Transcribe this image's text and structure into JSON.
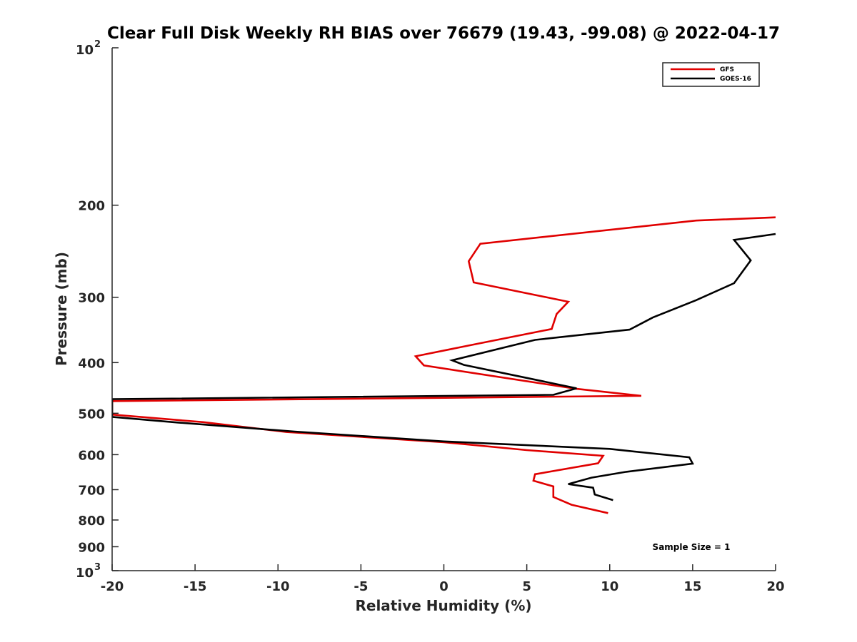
{
  "chart_data": {
    "type": "line",
    "title": "Clear Full Disk Weekly RH BIAS over 76679 (19.43, -99.08) @ 2022-04-17",
    "xlabel": "Relative Humidity (%)",
    "ylabel": "Pressure (mb)",
    "xlim": [
      -20,
      20
    ],
    "ylim": [
      100,
      1000
    ],
    "y_scale": "log",
    "y_reversed": true,
    "x_ticks": [
      "-20",
      "-15",
      "-10",
      "-5",
      "0",
      "5",
      "10",
      "15",
      "20"
    ],
    "y_ticks": [
      {
        "value": 100,
        "label": "10",
        "sup": "2"
      },
      {
        "value": 200,
        "label": "200",
        "sup": ""
      },
      {
        "value": 300,
        "label": "300",
        "sup": ""
      },
      {
        "value": 400,
        "label": "400",
        "sup": ""
      },
      {
        "value": 500,
        "label": "500",
        "sup": ""
      },
      {
        "value": 600,
        "label": "600",
        "sup": ""
      },
      {
        "value": 700,
        "label": "700",
        "sup": ""
      },
      {
        "value": 800,
        "label": "800",
        "sup": ""
      },
      {
        "value": 900,
        "label": "900",
        "sup": ""
      },
      {
        "value": 1000,
        "label": "10",
        "sup": "3"
      }
    ],
    "grid": false,
    "legend_position": "top-right",
    "annotation": "Sample Size = 1",
    "series": [
      {
        "name": "GFS",
        "color": "#e00000",
        "points": [
          [
            20,
            211
          ],
          [
            15.2,
            214
          ],
          [
            2.2,
            237
          ],
          [
            1.5,
            256
          ],
          [
            1.8,
            281
          ],
          [
            7.5,
            306
          ],
          [
            6.8,
            323
          ],
          [
            6.5,
            345
          ],
          [
            1.5,
            371
          ],
          [
            -1.7,
            389
          ],
          [
            -1.2,
            405
          ],
          [
            8,
            449
          ],
          [
            11.9,
            463
          ],
          [
            -20,
            474
          ],
          [
            -20,
            503
          ],
          [
            -14.5,
            520
          ],
          [
            -9.5,
            543
          ],
          [
            0,
            568
          ],
          [
            5,
            588
          ],
          [
            9.6,
            603
          ],
          [
            9.3,
            623
          ],
          [
            5.5,
            654
          ],
          [
            5.4,
            673
          ],
          [
            6.6,
            690
          ],
          [
            6.6,
            723
          ],
          [
            7.7,
            748
          ],
          [
            9.9,
            776
          ]
        ]
      },
      {
        "name": "GOES-16",
        "color": "#000000",
        "points": [
          [
            20,
            227
          ],
          [
            17.5,
            233
          ],
          [
            18.5,
            255
          ],
          [
            17.5,
            282
          ],
          [
            15.2,
            304
          ],
          [
            12.6,
            328
          ],
          [
            11.2,
            346
          ],
          [
            5.5,
            362
          ],
          [
            0.5,
            396
          ],
          [
            1.2,
            404
          ],
          [
            5,
            428
          ],
          [
            8,
            448
          ],
          [
            6.6,
            461
          ],
          [
            -20,
            470
          ],
          [
            -20,
            508
          ],
          [
            -16,
            521
          ],
          [
            -9,
            542
          ],
          [
            0,
            566
          ],
          [
            10,
            585
          ],
          [
            14.8,
            607
          ],
          [
            15,
            624
          ],
          [
            11,
            647
          ],
          [
            8.9,
            664
          ],
          [
            7.5,
            683
          ],
          [
            9.0,
            694
          ],
          [
            9.1,
            715
          ],
          [
            10.2,
            733
          ]
        ]
      }
    ]
  }
}
